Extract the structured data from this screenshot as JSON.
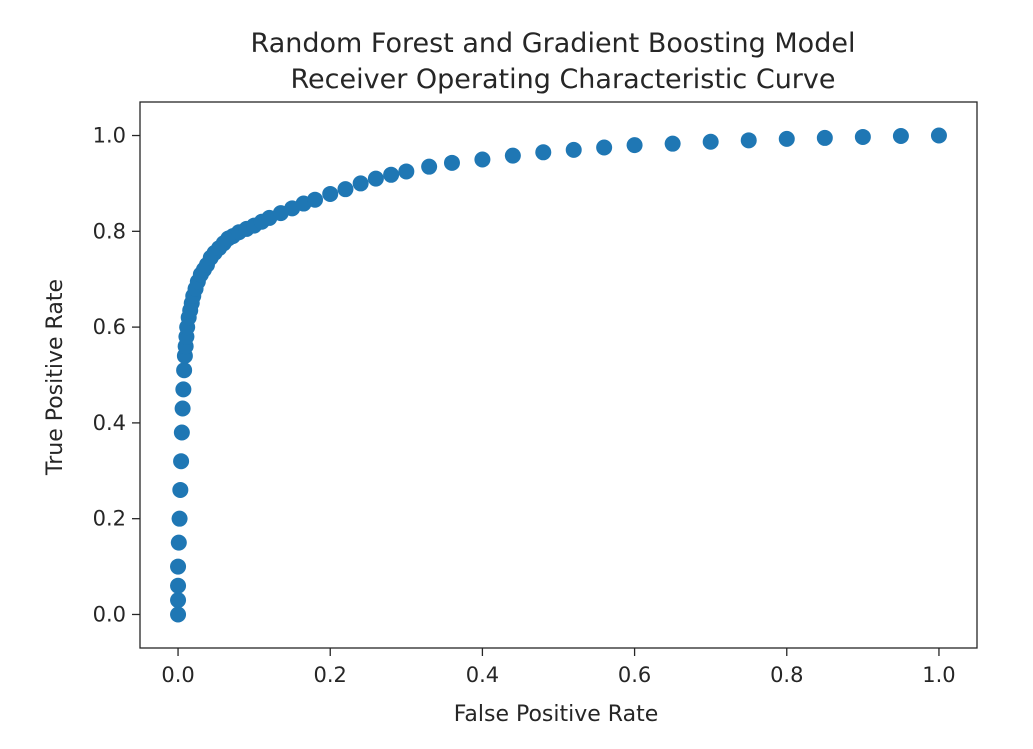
{
  "chart_data": {
    "type": "scatter",
    "title": [
      "Random Forest and Gradient Boosting Model",
      "Receiver Operating Characteristic Curve"
    ],
    "xlabel": "False Positive Rate",
    "ylabel": "True Positive Rate",
    "xlim": [
      -0.05,
      1.05
    ],
    "ylim": [
      -0.07,
      1.07
    ],
    "xticks": [
      0.0,
      0.2,
      0.4,
      0.6,
      0.8,
      1.0
    ],
    "xtick_labels": [
      "0.0",
      "0.2",
      "0.4",
      "0.6",
      "0.8",
      "1.0"
    ],
    "yticks": [
      0.0,
      0.2,
      0.4,
      0.6,
      0.8,
      1.0
    ],
    "ytick_labels": [
      "0.0",
      "0.2",
      "0.4",
      "0.6",
      "0.8",
      "1.0"
    ],
    "grid": false,
    "marker_color": "#1f77b4",
    "series": [
      {
        "x": [
          0.0,
          0.0,
          0.0,
          0.0,
          0.001,
          0.002,
          0.003,
          0.004,
          0.005,
          0.006,
          0.007,
          0.008,
          0.009,
          0.01,
          0.011,
          0.012,
          0.014,
          0.016,
          0.018,
          0.02,
          0.023,
          0.026,
          0.03,
          0.034,
          0.038,
          0.043,
          0.048,
          0.054,
          0.06,
          0.066,
          0.072,
          0.08,
          0.09,
          0.1,
          0.11,
          0.12,
          0.135,
          0.15,
          0.165,
          0.18,
          0.2,
          0.22,
          0.24,
          0.26,
          0.28,
          0.3,
          0.33,
          0.36,
          0.4,
          0.44,
          0.48,
          0.52,
          0.56,
          0.6,
          0.65,
          0.7,
          0.75,
          0.8,
          0.85,
          0.9,
          0.95,
          1.0
        ],
        "y": [
          0.0,
          0.03,
          0.06,
          0.1,
          0.15,
          0.2,
          0.26,
          0.32,
          0.38,
          0.43,
          0.47,
          0.51,
          0.54,
          0.56,
          0.58,
          0.6,
          0.62,
          0.635,
          0.65,
          0.665,
          0.68,
          0.695,
          0.71,
          0.72,
          0.73,
          0.745,
          0.755,
          0.765,
          0.775,
          0.785,
          0.79,
          0.798,
          0.805,
          0.812,
          0.82,
          0.828,
          0.838,
          0.848,
          0.858,
          0.866,
          0.878,
          0.888,
          0.9,
          0.91,
          0.918,
          0.925,
          0.935,
          0.943,
          0.95,
          0.958,
          0.965,
          0.97,
          0.975,
          0.98,
          0.983,
          0.987,
          0.99,
          0.993,
          0.995,
          0.997,
          0.999,
          1.0
        ]
      }
    ]
  }
}
